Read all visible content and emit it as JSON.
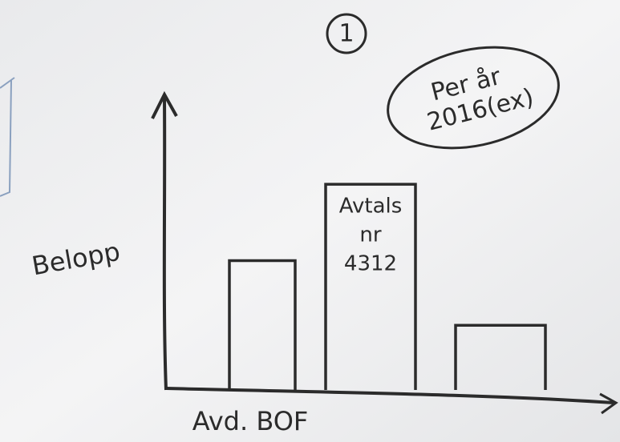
{
  "chart_data": {
    "type": "bar",
    "marker": "1",
    "subtitle": [
      "Per år",
      "2016(ex)"
    ],
    "ylabel": "Belopp",
    "xlabel": "Avd. BOF",
    "categories": [
      null,
      null,
      null
    ],
    "values": [
      44,
      70,
      22
    ],
    "bar_notes": [
      null,
      [
        "Avtals",
        "nr",
        "4312"
      ],
      null
    ],
    "color": "#2b2b2b",
    "ylim": [
      0,
      100
    ]
  }
}
